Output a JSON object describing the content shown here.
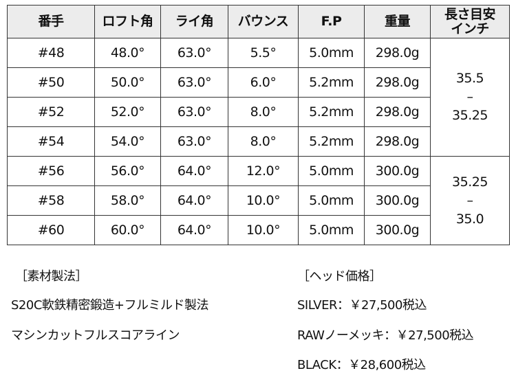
{
  "table": {
    "headers": [
      "番手",
      "ロフト角",
      "ライ角",
      "バウンス",
      "F.P",
      "重量",
      "長さ目安",
      "インチ"
    ],
    "rows": [
      [
        "#48",
        "48.0°",
        "63.0°",
        "5.5°",
        "5.0mm",
        "298.0g"
      ],
      [
        "#50",
        "50.0°",
        "63.0°",
        "6.0°",
        "5.2mm",
        "298.0g"
      ],
      [
        "#52",
        "52.0°",
        "63.0°",
        "8.0°",
        "5.2mm",
        "298.0g"
      ],
      [
        "#54",
        "54.0°",
        "63.0°",
        "8.0°",
        "5.2mm",
        "298.0g"
      ],
      [
        "#56",
        "56.0°",
        "64.0°",
        "12.0°",
        "5.0mm",
        "300.0g"
      ],
      [
        "#58",
        "58.0°",
        "64.0°",
        "10.0°",
        "5.0mm",
        "300.0g"
      ],
      [
        "#60",
        "60.0°",
        "64.0°",
        "10.0°",
        "5.0mm",
        "300.0g"
      ]
    ],
    "length_groups": [
      {
        "from": "35.5",
        "dash": "–",
        "to": "35.25"
      },
      {
        "from": "35.25",
        "dash": "–",
        "to": "35.0"
      }
    ]
  },
  "material": {
    "heading": "［素材製法］",
    "lines": [
      "S20C軟鉄精密鍛造+フルミルド製法",
      "マシンカットフルスコアライン"
    ]
  },
  "price": {
    "heading": "［ヘッド価格］",
    "lines": [
      "SILVER：￥27,500税込",
      "RAWノーメッキ：￥27,500税込",
      "BLACK：￥28,600税込"
    ]
  }
}
